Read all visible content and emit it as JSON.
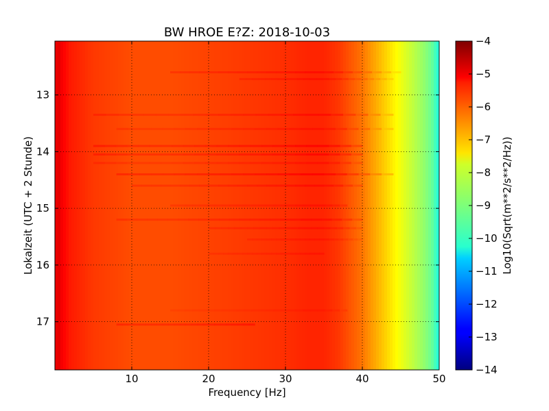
{
  "chart_data": {
    "type": "heatmap",
    "title": "BW HROE E?Z: 2018-10-03",
    "xlabel": "Frequency [Hz]",
    "ylabel": "Lokalzeit (UTC + 2 Stunde)",
    "xlim": [
      0,
      50
    ],
    "ylim": [
      12.05,
      17.85
    ],
    "y_inverted": true,
    "x_ticks": [
      10,
      20,
      30,
      40,
      50
    ],
    "x_tick_labels": [
      "10",
      "20",
      "30",
      "40",
      "50"
    ],
    "y_ticks": [
      13,
      14,
      15,
      16,
      17
    ],
    "y_tick_labels": [
      "13",
      "14",
      "15",
      "16",
      "17"
    ],
    "grid": true,
    "colormap": "jet",
    "colorbar": {
      "label": "Log10(Sqrt(m**2/s**2/Hz))",
      "range": [
        -14,
        -4
      ],
      "ticks": [
        -4,
        -5,
        -6,
        -7,
        -8,
        -9,
        -10,
        -11,
        -12,
        -13,
        -14
      ],
      "tick_labels": [
        "−4",
        "−5",
        "−6",
        "−7",
        "−8",
        "−9",
        "−10",
        "−11",
        "−12",
        "−13",
        "−14"
      ]
    },
    "frequency_profile": {
      "x": [
        0,
        0.5,
        1,
        2,
        5,
        10,
        15,
        20,
        25,
        30,
        33,
        35,
        37,
        38,
        39,
        40,
        41,
        42,
        43,
        44,
        45,
        46,
        47,
        48,
        49,
        49.5,
        50
      ],
      "values": [
        -5.1,
        -5.0,
        -5.2,
        -5.5,
        -5.8,
        -6.0,
        -6.0,
        -5.9,
        -5.8,
        -5.7,
        -5.6,
        -5.6,
        -5.8,
        -6.0,
        -6.2,
        -6.4,
        -6.7,
        -7.0,
        -7.3,
        -7.6,
        -7.9,
        -8.2,
        -8.5,
        -8.8,
        -9.2,
        -9.6,
        -10.0
      ]
    },
    "bands": [
      {
        "time": 12.6,
        "x_start": 15,
        "x_end": 45,
        "value_offset": 0.25
      },
      {
        "time": 12.72,
        "x_start": 24,
        "x_end": 44,
        "value_offset": 0.2
      },
      {
        "time": 13.35,
        "x_start": 5,
        "x_end": 44,
        "value_offset": 0.25
      },
      {
        "time": 13.6,
        "x_start": 8,
        "x_end": 44,
        "value_offset": 0.2
      },
      {
        "time": 13.9,
        "x_start": 5,
        "x_end": 40,
        "value_offset": 0.35
      },
      {
        "time": 14.05,
        "x_start": 5,
        "x_end": 40,
        "value_offset": 0.3
      },
      {
        "time": 14.2,
        "x_start": 5,
        "x_end": 40,
        "value_offset": 0.2
      },
      {
        "time": 14.4,
        "x_start": 8,
        "x_end": 44,
        "value_offset": 0.35
      },
      {
        "time": 14.6,
        "x_start": 10,
        "x_end": 40,
        "value_offset": 0.25
      },
      {
        "time": 14.95,
        "x_start": 15,
        "x_end": 38,
        "value_offset": 0.2
      },
      {
        "time": 15.2,
        "x_start": 8,
        "x_end": 40,
        "value_offset": 0.25
      },
      {
        "time": 15.35,
        "x_start": 20,
        "x_end": 40,
        "value_offset": 0.2
      },
      {
        "time": 15.55,
        "x_start": 25,
        "x_end": 40,
        "value_offset": 0.15
      },
      {
        "time": 15.8,
        "x_start": 20,
        "x_end": 35,
        "value_offset": 0.15
      },
      {
        "time": 16.8,
        "x_start": 15,
        "x_end": 38,
        "value_offset": 0.1
      },
      {
        "time": 17.05,
        "x_start": 8,
        "x_end": 26,
        "value_offset": 0.35
      }
    ]
  }
}
